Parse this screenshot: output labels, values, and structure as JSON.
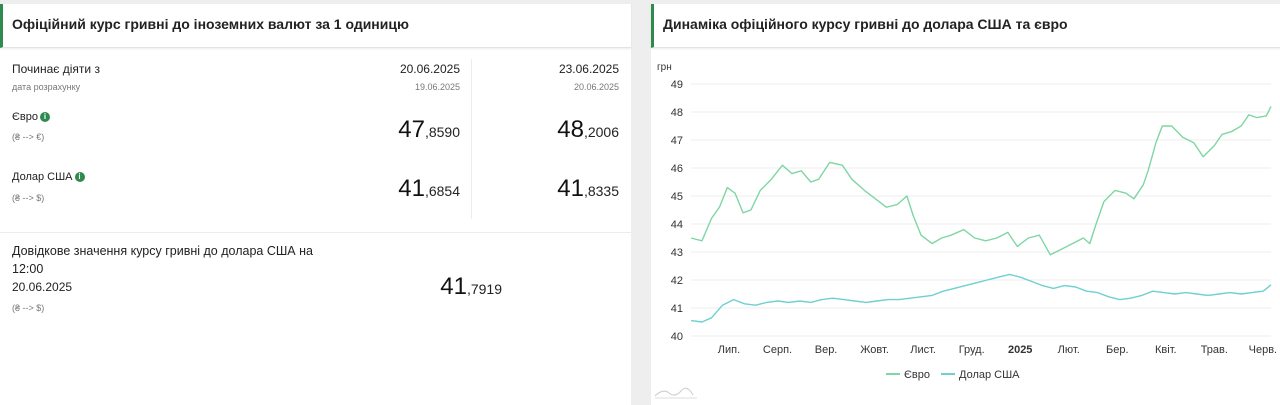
{
  "left": {
    "title": "Офіційний курс гривні до іноземних валют за 1 одиницю",
    "effective_label": "Починає діяти з",
    "calc_label": "дата розрахунку",
    "col1": {
      "date": "20.06.2025",
      "calc_date": "19.06.2025",
      "eur_int": "47",
      "eur_dec": ",8590",
      "usd_int": "41",
      "usd_dec": ",6854"
    },
    "col2": {
      "date": "23.06.2025",
      "calc_date": "20.06.2025",
      "eur_int": "48",
      "eur_dec": ",2006",
      "usd_int": "41",
      "usd_dec": ",8335"
    },
    "eur_label": "Євро",
    "eur_dir": "(₴ --> €)",
    "usd_label": "Долар США",
    "usd_dir": "(₴ --> $)",
    "info_icon": "i",
    "ref_label_1": "Довідкове значення курсу гривні до долара США на",
    "ref_label_2": "12:00",
    "ref_date": "20.06.2025",
    "ref_dir": "(₴ --> $)",
    "ref_int": "41",
    "ref_dec": ",7919"
  },
  "right": {
    "title": "Динаміка офіційного курсу гривні до долара США та євро"
  },
  "colors": {
    "green": "#2e8a4e",
    "eur_line": "#7fd6a4",
    "usd_line": "#6ed0cf"
  },
  "chart_data": {
    "type": "line",
    "ylabel": "грн",
    "ylim": [
      40,
      49
    ],
    "yticks": [
      40,
      41,
      42,
      43,
      44,
      45,
      46,
      47,
      48,
      49
    ],
    "xtick_labels": [
      "Лип.",
      "Серп.",
      "Вер.",
      "Жовт.",
      "Лист.",
      "Груд.",
      "2025",
      "Лют.",
      "Бер.",
      "Квіт.",
      "Трав.",
      "Черв."
    ],
    "xtick_bold": "2025",
    "grid": true,
    "legend_position": "bottom",
    "x_start": "2024-06-20",
    "x_end": "2025-06-23",
    "series": [
      {
        "name": "Євро",
        "color": "#7fd6a4",
        "points": [
          [
            "2024-06-20",
            43.5
          ],
          [
            "2024-06-27",
            43.4
          ],
          [
            "2024-07-03",
            44.2
          ],
          [
            "2024-07-08",
            44.6
          ],
          [
            "2024-07-13",
            45.3
          ],
          [
            "2024-07-18",
            45.1
          ],
          [
            "2024-07-23",
            44.4
          ],
          [
            "2024-07-28",
            44.5
          ],
          [
            "2024-08-03",
            45.2
          ],
          [
            "2024-08-10",
            45.6
          ],
          [
            "2024-08-17",
            46.1
          ],
          [
            "2024-08-23",
            45.8
          ],
          [
            "2024-08-29",
            45.9
          ],
          [
            "2024-09-04",
            45.5
          ],
          [
            "2024-09-09",
            45.6
          ],
          [
            "2024-09-16",
            46.2
          ],
          [
            "2024-09-24",
            46.1
          ],
          [
            "2024-09-30",
            45.6
          ],
          [
            "2024-10-08",
            45.2
          ],
          [
            "2024-10-15",
            44.9
          ],
          [
            "2024-10-22",
            44.6
          ],
          [
            "2024-10-29",
            44.7
          ],
          [
            "2024-11-04",
            45.0
          ],
          [
            "2024-11-08",
            44.3
          ],
          [
            "2024-11-13",
            43.6
          ],
          [
            "2024-11-20",
            43.3
          ],
          [
            "2024-11-26",
            43.5
          ],
          [
            "2024-12-02",
            43.6
          ],
          [
            "2024-12-10",
            43.8
          ],
          [
            "2024-12-17",
            43.5
          ],
          [
            "2024-12-24",
            43.4
          ],
          [
            "2024-12-31",
            43.5
          ],
          [
            "2025-01-07",
            43.7
          ],
          [
            "2025-01-13",
            43.2
          ],
          [
            "2025-01-20",
            43.5
          ],
          [
            "2025-01-27",
            43.6
          ],
          [
            "2025-02-03",
            42.9
          ],
          [
            "2025-02-10",
            43.1
          ],
          [
            "2025-02-17",
            43.3
          ],
          [
            "2025-02-24",
            43.5
          ],
          [
            "2025-02-28",
            43.3
          ],
          [
            "2025-03-04",
            44.0
          ],
          [
            "2025-03-09",
            44.8
          ],
          [
            "2025-03-16",
            45.2
          ],
          [
            "2025-03-23",
            45.1
          ],
          [
            "2025-03-28",
            44.9
          ],
          [
            "2025-04-03",
            45.4
          ],
          [
            "2025-04-06",
            45.9
          ],
          [
            "2025-04-11",
            46.9
          ],
          [
            "2025-04-15",
            47.5
          ],
          [
            "2025-04-21",
            47.5
          ],
          [
            "2025-04-28",
            47.1
          ],
          [
            "2025-05-05",
            46.9
          ],
          [
            "2025-05-11",
            46.4
          ],
          [
            "2025-05-18",
            46.8
          ],
          [
            "2025-05-23",
            47.2
          ],
          [
            "2025-05-29",
            47.3
          ],
          [
            "2025-06-04",
            47.5
          ],
          [
            "2025-06-09",
            47.9
          ],
          [
            "2025-06-14",
            47.8
          ],
          [
            "2025-06-20",
            47.86
          ],
          [
            "2025-06-23",
            48.2
          ]
        ]
      },
      {
        "name": "Долар США",
        "color": "#6ed0cf",
        "points": [
          [
            "2024-06-20",
            40.55
          ],
          [
            "2024-06-27",
            40.5
          ],
          [
            "2024-07-03",
            40.65
          ],
          [
            "2024-07-10",
            41.1
          ],
          [
            "2024-07-17",
            41.3
          ],
          [
            "2024-07-24",
            41.15
          ],
          [
            "2024-07-31",
            41.1
          ],
          [
            "2024-08-07",
            41.2
          ],
          [
            "2024-08-14",
            41.25
          ],
          [
            "2024-08-21",
            41.2
          ],
          [
            "2024-08-28",
            41.25
          ],
          [
            "2024-09-04",
            41.2
          ],
          [
            "2024-09-11",
            41.3
          ],
          [
            "2024-09-18",
            41.35
          ],
          [
            "2024-09-25",
            41.3
          ],
          [
            "2024-10-02",
            41.25
          ],
          [
            "2024-10-09",
            41.2
          ],
          [
            "2024-10-16",
            41.25
          ],
          [
            "2024-10-23",
            41.3
          ],
          [
            "2024-10-30",
            41.3
          ],
          [
            "2024-11-06",
            41.35
          ],
          [
            "2024-11-13",
            41.4
          ],
          [
            "2024-11-20",
            41.45
          ],
          [
            "2024-11-27",
            41.6
          ],
          [
            "2024-12-04",
            41.7
          ],
          [
            "2024-12-11",
            41.8
          ],
          [
            "2024-12-18",
            41.9
          ],
          [
            "2024-12-25",
            42.0
          ],
          [
            "2025-01-01",
            42.1
          ],
          [
            "2025-01-08",
            42.2
          ],
          [
            "2025-01-15",
            42.1
          ],
          [
            "2025-01-22",
            41.95
          ],
          [
            "2025-01-29",
            41.8
          ],
          [
            "2025-02-05",
            41.7
          ],
          [
            "2025-02-12",
            41.8
          ],
          [
            "2025-02-19",
            41.75
          ],
          [
            "2025-02-26",
            41.6
          ],
          [
            "2025-03-05",
            41.55
          ],
          [
            "2025-03-12",
            41.4
          ],
          [
            "2025-03-19",
            41.3
          ],
          [
            "2025-03-26",
            41.35
          ],
          [
            "2025-04-02",
            41.45
          ],
          [
            "2025-04-09",
            41.6
          ],
          [
            "2025-04-16",
            41.55
          ],
          [
            "2025-04-23",
            41.5
          ],
          [
            "2025-04-30",
            41.55
          ],
          [
            "2025-05-07",
            41.5
          ],
          [
            "2025-05-14",
            41.45
          ],
          [
            "2025-05-21",
            41.5
          ],
          [
            "2025-05-28",
            41.55
          ],
          [
            "2025-06-04",
            41.5
          ],
          [
            "2025-06-11",
            41.55
          ],
          [
            "2025-06-18",
            41.6
          ],
          [
            "2025-06-20",
            41.69
          ],
          [
            "2025-06-23",
            41.83
          ]
        ]
      }
    ]
  }
}
